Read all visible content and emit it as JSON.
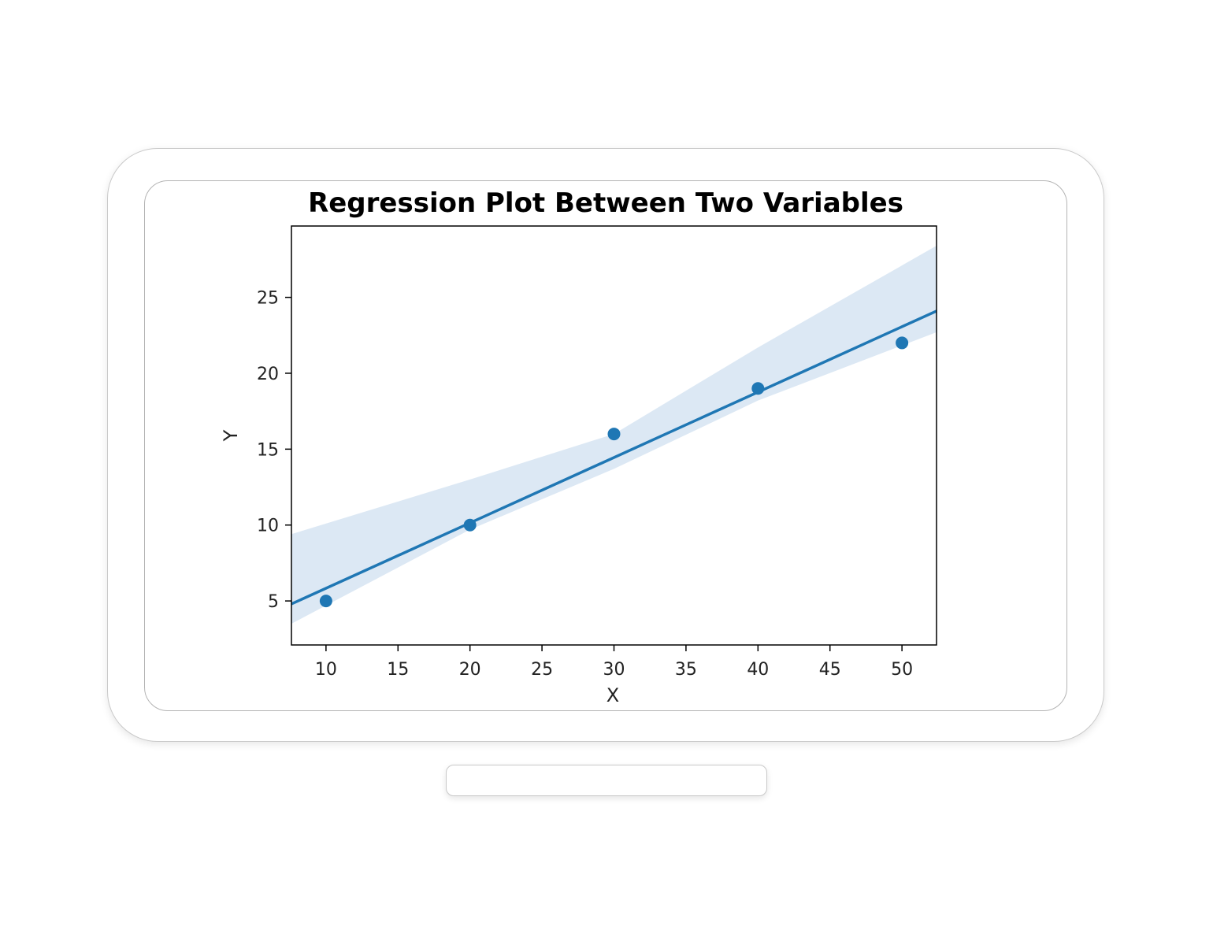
{
  "chart_data": {
    "type": "scatter",
    "title": "Regression Plot Between Two Variables",
    "xlabel": "X",
    "ylabel": "Y",
    "xlim": [
      7.6,
      52.4
    ],
    "ylim": [
      2.1,
      29.7
    ],
    "xticks": [
      10,
      15,
      20,
      25,
      30,
      35,
      40,
      45,
      50
    ],
    "yticks": [
      5,
      10,
      15,
      20,
      25
    ],
    "points": [
      {
        "x": 10,
        "y": 5
      },
      {
        "x": 20,
        "y": 10
      },
      {
        "x": 30,
        "y": 16
      },
      {
        "x": 40,
        "y": 19
      },
      {
        "x": 50,
        "y": 22
      }
    ],
    "regression_line": [
      {
        "x": 7.6,
        "y": 4.8
      },
      {
        "x": 52.4,
        "y": 24.1
      }
    ],
    "confidence_band": {
      "upper": [
        {
          "x": 7.6,
          "y": 9.4
        },
        {
          "x": 20,
          "y": 13.0
        },
        {
          "x": 30,
          "y": 16.0
        },
        {
          "x": 40,
          "y": 21.7
        },
        {
          "x": 52.4,
          "y": 28.4
        }
      ],
      "lower": [
        {
          "x": 7.6,
          "y": 3.5
        },
        {
          "x": 20,
          "y": 9.7
        },
        {
          "x": 30,
          "y": 13.7
        },
        {
          "x": 40,
          "y": 18.2
        },
        {
          "x": 52.4,
          "y": 22.7
        }
      ]
    },
    "grid": false,
    "legend": "none",
    "colors": {
      "points": "#1f77b4",
      "line": "#1f77b4",
      "band": "#dce8f4"
    }
  }
}
